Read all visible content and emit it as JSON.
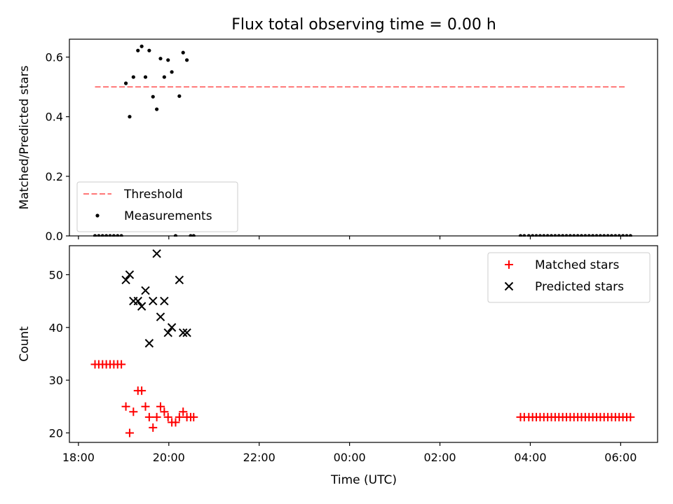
{
  "figure_title": "Flux total observing time = 0.00 h",
  "xlabel": "Time (UTC)",
  "chart_data": [
    {
      "type": "scatter",
      "panel": "top",
      "ylabel": "Matched/Predicted stars",
      "xlim": [
        "17:48",
        "06:49"
      ],
      "ylim": [
        0,
        0.66
      ],
      "yticks": [
        "0.0",
        "0.2",
        "0.4",
        "0.6"
      ],
      "xticks": [
        "18:00",
        "20:00",
        "22:00",
        "00:00",
        "02:00",
        "04:00",
        "06:00"
      ],
      "grid": false,
      "legend_position": "lower-left",
      "threshold": {
        "name": "Threshold",
        "value": 0.5,
        "x_range": [
          "18:22",
          "06:07"
        ],
        "color": "#ff7777",
        "style": "dashed"
      },
      "series": [
        {
          "name": "Measurements",
          "marker": "dot",
          "color": "#000000",
          "points": [
            [
              "18:22",
              0
            ],
            [
              "18:27",
              0
            ],
            [
              "18:32",
              0
            ],
            [
              "18:37",
              0
            ],
            [
              "18:42",
              0
            ],
            [
              "18:47",
              0
            ],
            [
              "18:52",
              0
            ],
            [
              "18:57",
              0
            ],
            [
              "19:03",
              0.512
            ],
            [
              "19:08",
              0.4
            ],
            [
              "19:13",
              0.533
            ],
            [
              "19:19",
              0.622
            ],
            [
              "19:24",
              0.636
            ],
            [
              "19:29",
              0.533
            ],
            [
              "19:34",
              0.622
            ],
            [
              "19:39",
              0.467
            ],
            [
              "19:44",
              0.425
            ],
            [
              "19:49",
              0.595
            ],
            [
              "19:54",
              0.533
            ],
            [
              "19:59",
              0.59
            ],
            [
              "20:04",
              0.55
            ],
            [
              "20:09",
              0
            ],
            [
              "20:14",
              0.469
            ],
            [
              "20:19",
              0.615
            ],
            [
              "20:24",
              0.59
            ],
            [
              "20:29",
              0
            ],
            [
              "20:33",
              0
            ],
            [
              "03:47",
              0
            ],
            [
              "03:52",
              0
            ],
            [
              "03:58",
              0
            ],
            [
              "04:03",
              0
            ],
            [
              "04:08",
              0
            ],
            [
              "04:13",
              0
            ],
            [
              "04:18",
              0
            ],
            [
              "04:23",
              0
            ],
            [
              "04:28",
              0
            ],
            [
              "04:33",
              0
            ],
            [
              "04:38",
              0
            ],
            [
              "04:43",
              0
            ],
            [
              "04:48",
              0
            ],
            [
              "04:53",
              0
            ],
            [
              "04:58",
              0
            ],
            [
              "05:03",
              0
            ],
            [
              "05:08",
              0
            ],
            [
              "05:13",
              0
            ],
            [
              "05:18",
              0
            ],
            [
              "05:23",
              0
            ],
            [
              "05:28",
              0
            ],
            [
              "05:33",
              0
            ],
            [
              "05:38",
              0
            ],
            [
              "05:43",
              0
            ],
            [
              "05:48",
              0
            ],
            [
              "05:53",
              0
            ],
            [
              "05:58",
              0
            ],
            [
              "06:03",
              0
            ],
            [
              "06:08",
              0
            ],
            [
              "06:13",
              0
            ]
          ]
        }
      ]
    },
    {
      "type": "scatter",
      "panel": "bottom",
      "ylabel": "Count",
      "xlim": [
        "17:48",
        "06:49"
      ],
      "ylim": [
        18.2,
        55.5
      ],
      "yticks": [
        "20",
        "30",
        "40",
        "50"
      ],
      "xticks": [
        "18:00",
        "20:00",
        "22:00",
        "00:00",
        "02:00",
        "04:00",
        "06:00"
      ],
      "grid": false,
      "legend_position": "upper-right",
      "series": [
        {
          "name": "Matched stars",
          "marker": "plus",
          "color": "#ff0000",
          "points": [
            [
              "18:22",
              33
            ],
            [
              "18:27",
              33
            ],
            [
              "18:32",
              33
            ],
            [
              "18:37",
              33
            ],
            [
              "18:42",
              33
            ],
            [
              "18:47",
              33
            ],
            [
              "18:52",
              33
            ],
            [
              "18:57",
              33
            ],
            [
              "19:03",
              25
            ],
            [
              "19:08",
              20
            ],
            [
              "19:13",
              24
            ],
            [
              "19:19",
              28
            ],
            [
              "19:24",
              28
            ],
            [
              "19:29",
              25
            ],
            [
              "19:34",
              23
            ],
            [
              "19:39",
              21
            ],
            [
              "19:44",
              23
            ],
            [
              "19:49",
              25
            ],
            [
              "19:54",
              24
            ],
            [
              "19:59",
              23
            ],
            [
              "20:04",
              22
            ],
            [
              "20:09",
              22
            ],
            [
              "20:14",
              23
            ],
            [
              "20:19",
              24
            ],
            [
              "20:24",
              23
            ],
            [
              "20:29",
              23
            ],
            [
              "20:33",
              23
            ],
            [
              "03:47",
              23
            ],
            [
              "03:52",
              23
            ],
            [
              "03:58",
              23
            ],
            [
              "04:03",
              23
            ],
            [
              "04:08",
              23
            ],
            [
              "04:13",
              23
            ],
            [
              "04:18",
              23
            ],
            [
              "04:23",
              23
            ],
            [
              "04:28",
              23
            ],
            [
              "04:33",
              23
            ],
            [
              "04:38",
              23
            ],
            [
              "04:43",
              23
            ],
            [
              "04:48",
              23
            ],
            [
              "04:53",
              23
            ],
            [
              "04:58",
              23
            ],
            [
              "05:03",
              23
            ],
            [
              "05:08",
              23
            ],
            [
              "05:13",
              23
            ],
            [
              "05:18",
              23
            ],
            [
              "05:23",
              23
            ],
            [
              "05:28",
              23
            ],
            [
              "05:33",
              23
            ],
            [
              "05:38",
              23
            ],
            [
              "05:43",
              23
            ],
            [
              "05:48",
              23
            ],
            [
              "05:53",
              23
            ],
            [
              "05:58",
              23
            ],
            [
              "06:03",
              23
            ],
            [
              "06:08",
              23
            ],
            [
              "06:13",
              23
            ]
          ]
        },
        {
          "name": "Predicted stars",
          "marker": "x",
          "color": "#000000",
          "points": [
            [
              "19:03",
              49
            ],
            [
              "19:08",
              50
            ],
            [
              "19:13",
              45
            ],
            [
              "19:19",
              45
            ],
            [
              "19:24",
              44
            ],
            [
              "19:29",
              47
            ],
            [
              "19:34",
              37
            ],
            [
              "19:39",
              45
            ],
            [
              "19:44",
              54
            ],
            [
              "19:49",
              42
            ],
            [
              "19:54",
              45
            ],
            [
              "19:59",
              39
            ],
            [
              "20:04",
              40
            ],
            [
              "20:14",
              49
            ],
            [
              "20:19",
              39
            ],
            [
              "20:24",
              39
            ]
          ]
        }
      ]
    }
  ]
}
